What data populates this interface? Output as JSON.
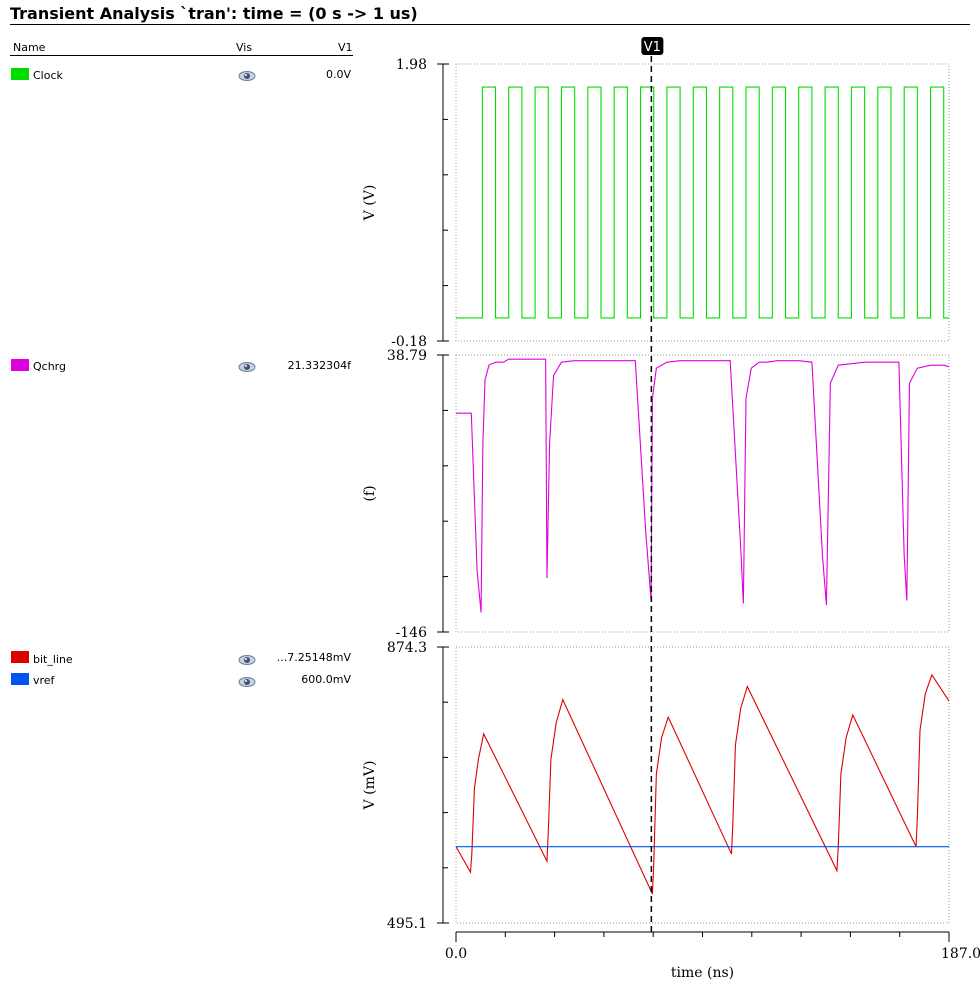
{
  "title": "Transient Analysis `tran': time = (0 s -> 1 us)",
  "columns": {
    "name": "Name",
    "vis": "Vis",
    "v1": "V1"
  },
  "signals": [
    {
      "name": "Clock",
      "value": "0.0V",
      "color": "#00dd00"
    },
    {
      "name": "Qchrg",
      "value": "21.332304f",
      "color": "#dd00dd"
    },
    {
      "name": "bit_line",
      "value": "...7.25148mV",
      "color": "#dd0000"
    },
    {
      "name": "vref",
      "value": "600.0mV",
      "color": "#0055ee"
    }
  ],
  "cursor": {
    "label": "V1",
    "time": 74.1
  },
  "chart_data": [
    {
      "type": "line",
      "ylabel": "V (V)",
      "ylim": [
        -0.18,
        1.98
      ],
      "xlim": [
        0,
        187.0
      ],
      "series": [
        {
          "name": "Clock",
          "kind": "square",
          "low": 0.0,
          "high": 1.8,
          "period": 10.0,
          "first_rise": 10.0,
          "duty": 0.5,
          "color": "#00dd00"
        }
      ]
    },
    {
      "type": "line",
      "ylabel": "(f)",
      "ylim": [
        -146.0,
        38.79
      ],
      "xlim": [
        0,
        187.0
      ],
      "series": [
        {
          "name": "Qchrg",
          "color": "#dd00dd",
          "x": [
            0,
            4,
            5.8,
            8,
            9.5,
            10.2,
            11,
            12.5,
            15,
            18,
            20,
            22,
            26,
            30,
            34,
            34.5,
            35.5,
            37,
            40,
            45,
            50,
            55,
            60,
            64,
            68,
            72,
            74,
            74.5,
            76,
            80,
            85,
            90,
            95,
            100,
            104,
            108,
            109,
            110,
            112,
            115,
            118,
            122,
            126,
            130,
            135,
            139,
            140.5,
            142,
            145,
            150,
            155,
            160,
            165,
            168,
            170,
            171,
            172,
            175,
            180,
            185,
            187
          ],
          "y": [
            0,
            0,
            0,
            -105,
            -133,
            -20,
            22,
            32,
            34,
            34,
            36,
            36,
            36,
            36,
            36,
            -110,
            -20,
            25,
            34,
            35,
            35,
            35,
            35,
            35,
            35,
            -80,
            -125,
            10,
            30,
            34,
            35,
            35,
            35,
            35,
            35,
            -90,
            -127,
            10,
            30,
            34,
            34,
            35,
            35,
            35,
            34,
            -95,
            -128,
            20,
            32,
            33,
            34,
            34,
            34,
            34,
            -95,
            -125,
            20,
            30,
            32,
            32,
            31
          ]
        }
      ]
    },
    {
      "type": "line",
      "ylabel": "V (mV)",
      "xlabel": "time (ns)",
      "ylim": [
        495.1,
        874.3
      ],
      "xlim": [
        0,
        187.0
      ],
      "x_tick_labels": [
        "0.0",
        "187.0"
      ],
      "series": [
        {
          "name": "bit_line",
          "color": "#dd0000",
          "x": [
            0,
            5.5,
            6,
            7,
            8.5,
            10.5,
            34.5,
            35,
            36,
            38,
            40.5,
            74.5,
            75,
            76,
            78,
            80.5,
            104.5,
            105,
            106,
            108,
            110.5,
            144.5,
            145,
            146,
            148,
            150.5,
            174.5,
            175,
            176,
            178,
            180.5,
            187
          ],
          "y": [
            600,
            565,
            590,
            680,
            720,
            755,
            580,
            620,
            720,
            770,
            802,
            535,
            575,
            700,
            750,
            778,
            590,
            630,
            740,
            790,
            820,
            567,
            600,
            700,
            750,
            781,
            600,
            640,
            760,
            810,
            836,
            800
          ]
        },
        {
          "name": "vref",
          "color": "#0055ee",
          "x": [
            0,
            187
          ],
          "y": [
            600,
            600
          ]
        }
      ]
    }
  ]
}
